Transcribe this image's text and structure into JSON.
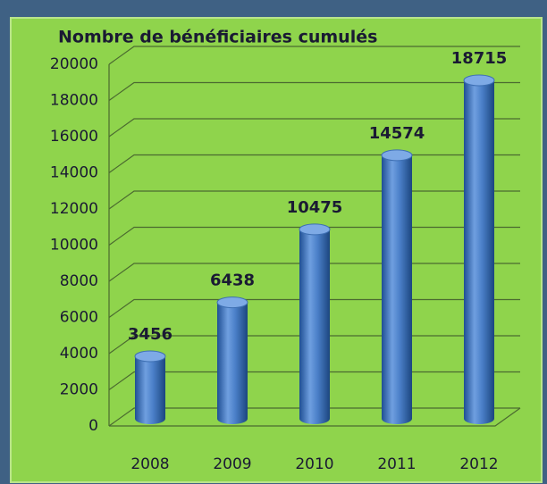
{
  "chart_data": {
    "type": "bar",
    "title": "Nombre de bénéficiaires cumulés",
    "categories": [
      "2008",
      "2009",
      "2010",
      "2011",
      "2012"
    ],
    "values": [
      3456,
      6438,
      10475,
      14574,
      18715
    ],
    "color": "#4a7fc8",
    "ylim": [
      0,
      20000
    ],
    "yticks": [
      0,
      2000,
      4000,
      6000,
      8000,
      10000,
      12000,
      14000,
      16000,
      18000,
      20000
    ],
    "grid": true
  }
}
